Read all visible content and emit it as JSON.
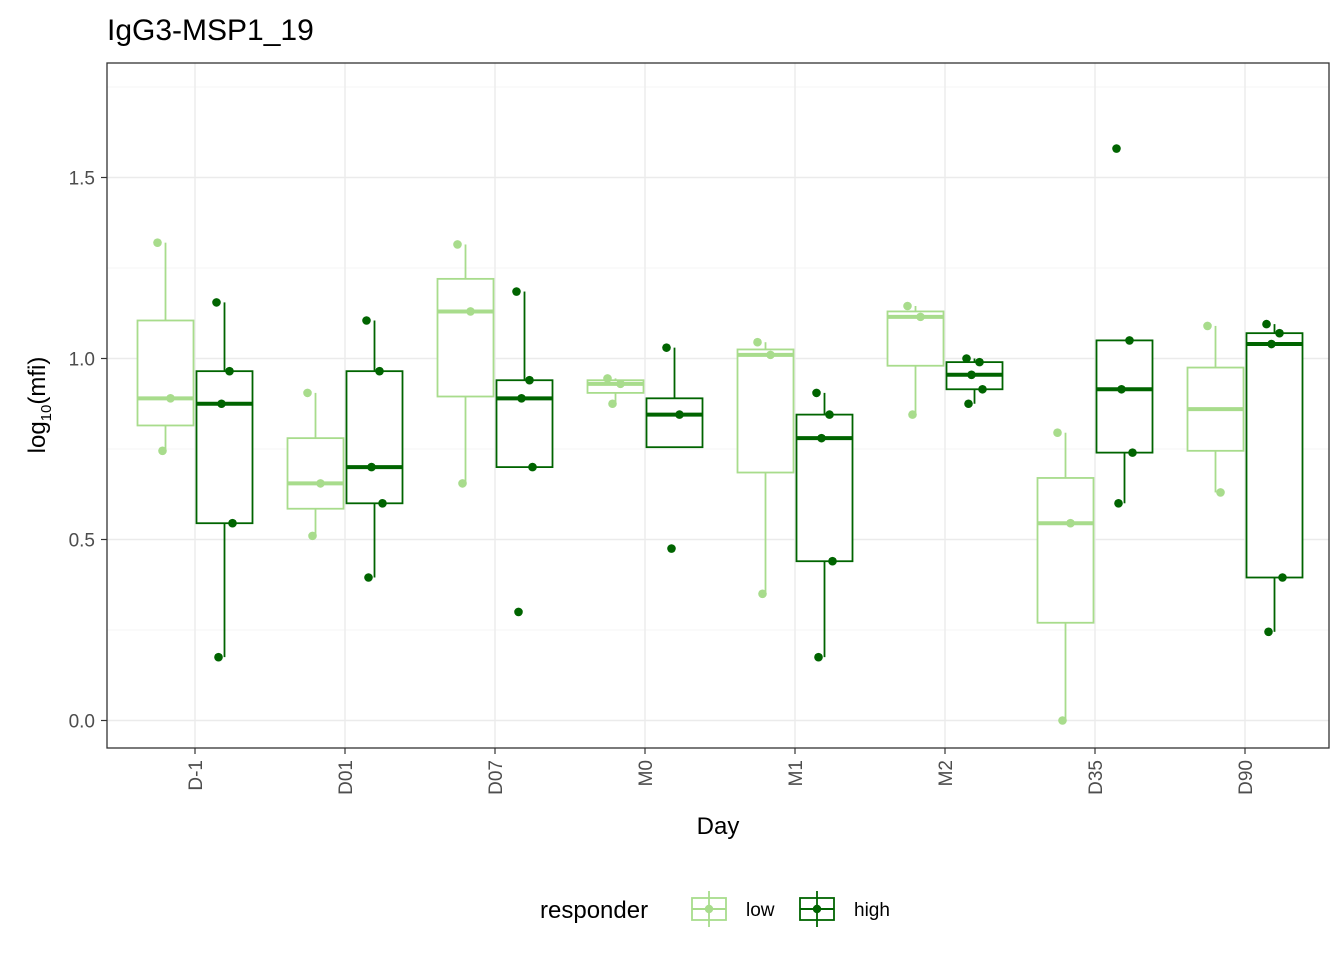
{
  "chart_data": {
    "type": "box",
    "title": "IgG3-MSP1_19",
    "xlabel": "Day",
    "ylabel": {
      "base": "log",
      "subscript": "10",
      "arg": "(mfi)"
    },
    "ylim": [
      -0.08,
      1.82
    ],
    "y_ticks": [
      0.0,
      0.5,
      1.0,
      1.5
    ],
    "y_tick_labels": [
      "0.0",
      "0.5",
      "1.0",
      "1.5"
    ],
    "grid": true,
    "categories": [
      "D-1",
      "D01",
      "D07",
      "M0",
      "M1",
      "M2",
      "D35",
      "D90"
    ],
    "legend": {
      "title": "responder",
      "position": "bottom",
      "entries": [
        {
          "label": "low",
          "color": "#a8dc8c"
        },
        {
          "label": "high",
          "color": "#006400"
        }
      ]
    },
    "series": [
      {
        "name": "low",
        "color": "#a8dc8c",
        "boxes": [
          {
            "category": "D-1",
            "q1": 0.815,
            "median": 0.89,
            "q3": 1.105,
            "whisker_low": 0.745,
            "whisker_high": 1.32,
            "points": [
              1.32,
              0.89,
              0.745
            ]
          },
          {
            "category": "D01",
            "q1": 0.585,
            "median": 0.655,
            "q3": 0.78,
            "whisker_low": 0.51,
            "whisker_high": 0.905,
            "points": [
              0.905,
              0.655,
              0.51
            ]
          },
          {
            "category": "D07",
            "q1": 0.895,
            "median": 1.13,
            "q3": 1.22,
            "whisker_low": 0.655,
            "whisker_high": 1.315,
            "points": [
              1.315,
              1.13,
              0.655
            ]
          },
          {
            "category": "M0",
            "q1": 0.905,
            "median": 0.93,
            "q3": 0.94,
            "whisker_low": 0.875,
            "whisker_high": 0.945,
            "points": [
              0.945,
              0.93,
              0.875
            ]
          },
          {
            "category": "M1",
            "q1": 0.685,
            "median": 1.01,
            "q3": 1.025,
            "whisker_low": 0.355,
            "whisker_high": 1.045,
            "points": [
              1.045,
              1.01,
              0.35
            ]
          },
          {
            "category": "M2",
            "q1": 0.98,
            "median": 1.115,
            "q3": 1.13,
            "whisker_low": 0.845,
            "whisker_high": 1.145,
            "points": [
              1.145,
              1.115,
              0.845
            ]
          },
          {
            "category": "D35",
            "q1": 0.27,
            "median": 0.545,
            "q3": 0.67,
            "whisker_low": 0.0,
            "whisker_high": 0.795,
            "points": [
              0.795,
              0.545,
              0.0
            ]
          },
          {
            "category": "D90",
            "q1": 0.745,
            "median": 0.86,
            "q3": 0.975,
            "whisker_low": 0.63,
            "whisker_high": 1.09,
            "points": [
              1.09,
              0.63
            ]
          }
        ]
      },
      {
        "name": "high",
        "color": "#006400",
        "boxes": [
          {
            "category": "D-1",
            "q1": 0.545,
            "median": 0.875,
            "q3": 0.965,
            "whisker_low": 0.175,
            "whisker_high": 1.155,
            "points": [
              1.155,
              0.965,
              0.875,
              0.545,
              0.175
            ]
          },
          {
            "category": "D01",
            "q1": 0.6,
            "median": 0.7,
            "q3": 0.965,
            "whisker_low": 0.395,
            "whisker_high": 1.105,
            "points": [
              1.105,
              0.965,
              0.7,
              0.6,
              0.395
            ]
          },
          {
            "category": "D07",
            "q1": 0.7,
            "median": 0.89,
            "q3": 0.94,
            "whisker_low": 0.7,
            "whisker_high": 1.185,
            "points": [
              1.185,
              0.94,
              0.89,
              0.7,
              0.3
            ]
          },
          {
            "category": "M0",
            "q1": 0.755,
            "median": 0.845,
            "q3": 0.89,
            "whisker_low": 0.755,
            "whisker_high": 1.03,
            "points": [
              1.03,
              0.845,
              0.475
            ]
          },
          {
            "category": "M1",
            "q1": 0.44,
            "median": 0.78,
            "q3": 0.845,
            "whisker_low": 0.175,
            "whisker_high": 0.905,
            "points": [
              0.905,
              0.845,
              0.78,
              0.44,
              0.175
            ]
          },
          {
            "category": "M2",
            "q1": 0.915,
            "median": 0.955,
            "q3": 0.99,
            "whisker_low": 0.875,
            "whisker_high": 1.0,
            "points": [
              1.0,
              0.99,
              0.955,
              0.915,
              0.875
            ]
          },
          {
            "category": "D35",
            "q1": 0.74,
            "median": 0.915,
            "q3": 1.05,
            "whisker_low": 0.6,
            "whisker_high": 1.05,
            "points": [
              1.58,
              1.05,
              0.915,
              0.74,
              0.6
            ]
          },
          {
            "category": "D90",
            "q1": 0.395,
            "median": 1.04,
            "q3": 1.07,
            "whisker_low": 0.245,
            "whisker_high": 1.095,
            "points": [
              1.095,
              1.07,
              1.04,
              0.395,
              0.245
            ]
          }
        ]
      }
    ]
  }
}
